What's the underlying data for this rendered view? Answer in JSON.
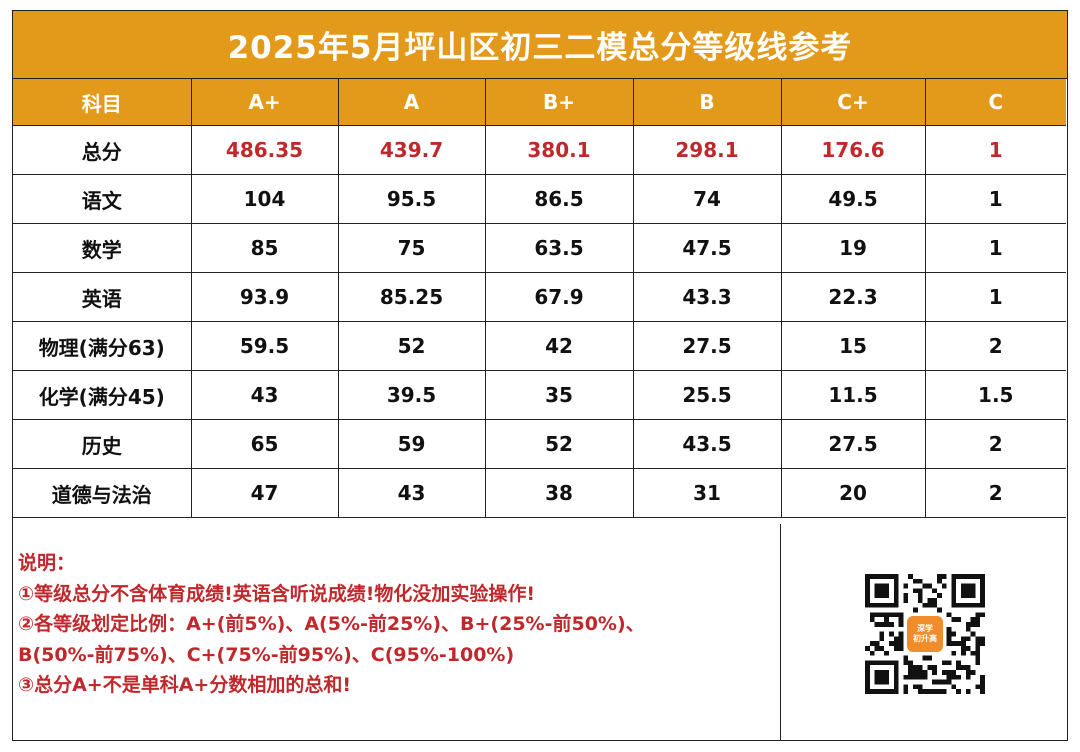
{
  "title": "2025年5月坪山区初三二模总分等级线参考",
  "header": [
    "科目",
    "A+",
    "A",
    "B+",
    "B",
    "C+",
    "C"
  ],
  "rows": [
    {
      "subject": "总分",
      "values": [
        "486.35",
        "439.7",
        "380.1",
        "298.1",
        "176.6",
        "1"
      ]
    },
    {
      "subject": "语文",
      "values": [
        "104",
        "95.5",
        "86.5",
        "74",
        "49.5",
        "1"
      ]
    },
    {
      "subject": "数学",
      "values": [
        "85",
        "75",
        "63.5",
        "47.5",
        "19",
        "1"
      ]
    },
    {
      "subject": "英语",
      "values": [
        "93.9",
        "85.25",
        "67.9",
        "43.3",
        "22.3",
        "1"
      ]
    },
    {
      "subject": "物理(满分63)",
      "values": [
        "59.5",
        "52",
        "42",
        "27.5",
        "15",
        "2"
      ]
    },
    {
      "subject": "化学(满分45)",
      "values": [
        "43",
        "39.5",
        "35",
        "25.5",
        "11.5",
        "1.5"
      ]
    },
    {
      "subject": "历史",
      "values": [
        "65",
        "59",
        "52",
        "43.5",
        "27.5",
        "2"
      ]
    },
    {
      "subject": "道德与法治",
      "values": [
        "47",
        "43",
        "38",
        "31",
        "20",
        "2"
      ]
    }
  ],
  "notes": {
    "heading": "说明：",
    "lines": [
      "①等级总分不含体育成绩!英语含听说成绩!物化没加实验操作!",
      "②各等级划定比例：A+(前5%)、A(5%-前25%)、B+(25%-前50%)、",
      "B(50%-前75%)、C+(75%-前95%)、C(95%-100%)",
      "③总分A+不是单科A+分数相加的总和!"
    ]
  },
  "qr_badge": [
    "深学",
    "初升高"
  ],
  "colors": {
    "accent": "#e39a1b",
    "highlight": "#c0282c",
    "border": "#222222"
  }
}
